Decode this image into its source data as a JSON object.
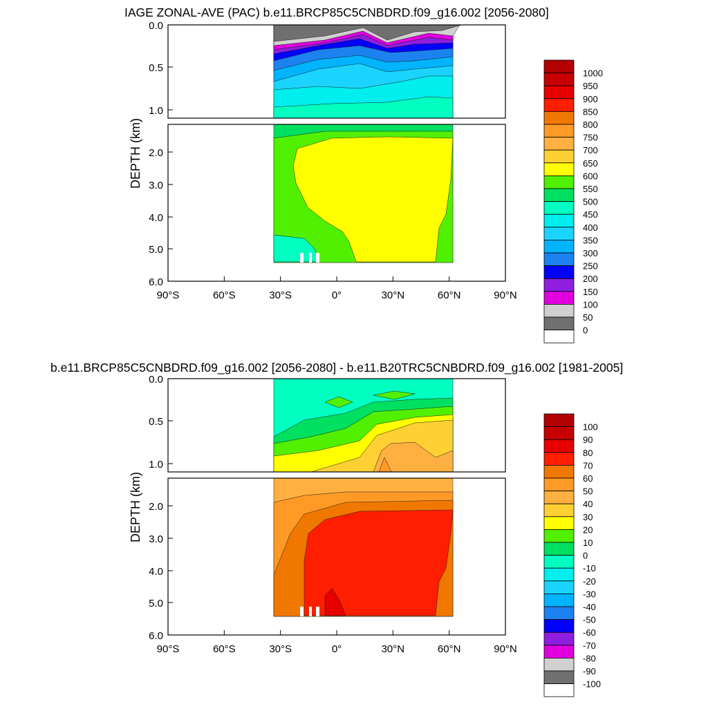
{
  "chart_data": [
    {
      "type": "heatmap",
      "title": "IAGE ZONAL-AVE (PAC) b.e11.BRCP85C5CNBDRD.f09_g16.002 [2056-2080]",
      "ylabel": "DEPTH (km)",
      "xlabel": "",
      "x_tick_labels": [
        "90°S",
        "60°S",
        "30°S",
        "0°",
        "30°N",
        "60°N",
        "90°N"
      ],
      "y_tick_labels_upper": [
        "0.0",
        "0.5",
        "1.0"
      ],
      "y_tick_labels_lower": [
        "2.0",
        "3.0",
        "4.0",
        "5.0",
        "6.0"
      ],
      "xlim": [
        -90,
        90
      ],
      "ylim_km": [
        6.0,
        0.0
      ],
      "colorbar_labels": [
        "1000",
        "950",
        "900",
        "850",
        "800",
        "750",
        "700",
        "650",
        "600",
        "550",
        "500",
        "450",
        "400",
        "350",
        "300",
        "250",
        "200",
        "150",
        "100",
        "50",
        "0"
      ],
      "colorbar_colors": [
        "#b30000",
        "#c80000",
        "#e60000",
        "#ff1e00",
        "#f07800",
        "#ff9a26",
        "#ffb040",
        "#ffd033",
        "#ffff00",
        "#51f000",
        "#00e060",
        "#00ffc0",
        "#00eeee",
        "#1ad4ff",
        "#00b4ff",
        "#1b82f0",
        "#0000ff",
        "#8f1ee0",
        "#e000e0",
        "#d0d0d0",
        "#707070",
        "#ffffff"
      ],
      "field_summary": {
        "data_longitude_range": [
          -34,
          62
        ],
        "upper_ocean_0_1km": "youngest (0–50, grey) at surface, increasing through 100–400 with depth; shallowest young water near 15°N and 45°N",
        "deep_ocean_1_5.4km": "500–600 near 1.5 km; interior 600+ (yellow) from ~0° to 60°N below 2 km; 450–550 along southern boundary"
      }
    },
    {
      "type": "heatmap",
      "title": "b.e11.BRCP85C5CNBDRD.f09_g16.002 [2056-2080] - b.e11.B20TRC5CNBDRD.f09_g16.002 [1981-2005]",
      "ylabel": "DEPTH (km)",
      "xlabel": "",
      "x_tick_labels": [
        "90°S",
        "60°S",
        "30°S",
        "0°",
        "30°N",
        "60°N",
        "90°N"
      ],
      "y_tick_labels_upper": [
        "0.0",
        "0.5",
        "1.0"
      ],
      "y_tick_labels_lower": [
        "2.0",
        "3.0",
        "4.0",
        "5.0",
        "6.0"
      ],
      "xlim": [
        -90,
        90
      ],
      "ylim_km": [
        6.0,
        0.0
      ],
      "colorbar_labels": [
        "100",
        "90",
        "80",
        "70",
        "60",
        "50",
        "40",
        "30",
        "20",
        "10",
        "0",
        "-10",
        "-20",
        "-30",
        "-40",
        "-50",
        "-60",
        "-70",
        "-80",
        "-90",
        "-100"
      ],
      "colorbar_colors": [
        "#b30000",
        "#c80000",
        "#e60000",
        "#ff1e00",
        "#f07800",
        "#ff9a26",
        "#ffb040",
        "#ffd033",
        "#ffff00",
        "#51f000",
        "#00e060",
        "#00ffc0",
        "#00eeee",
        "#1ad4ff",
        "#00b4ff",
        "#1b82f0",
        "#0000ff",
        "#8f1ee0",
        "#e000e0",
        "#d0d0d0",
        "#707070",
        "#ffffff"
      ],
      "field_summary": {
        "data_longitude_range": [
          -34,
          62
        ],
        "upper_ocean_0_1km": "difference -10 to 10 near surface in south, 10–40 increasing toward north and with depth",
        "deep_ocean_1_5.4km": "30–60 near 1–2 km; interior 70–80 (red) below 2 km from ~0° to 60°N; 80–90 patch near 5 km around 0°"
      }
    }
  ]
}
